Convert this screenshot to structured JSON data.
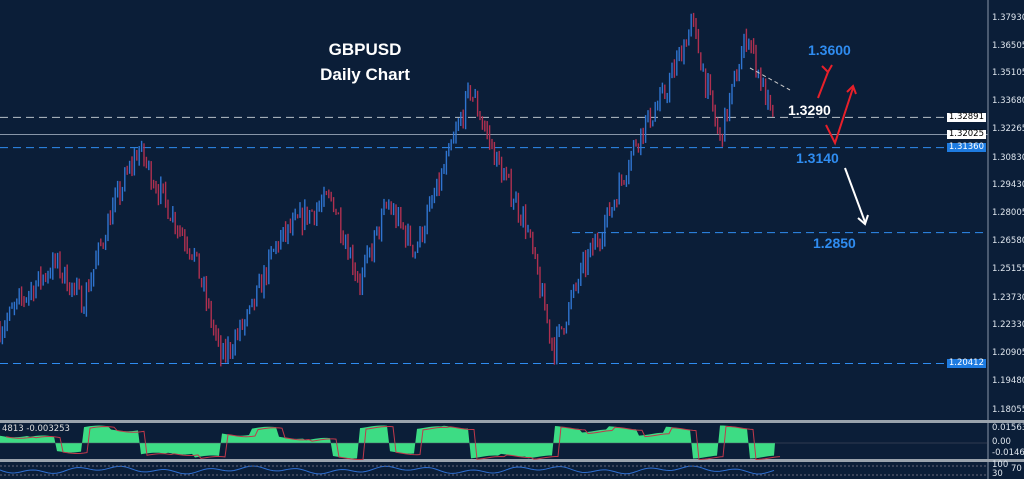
{
  "chart_data": {
    "type": "candlestick",
    "title": "GBPUSD",
    "subtitle": "Daily Chart",
    "ylim": [
      1.18055,
      1.3793
    ],
    "y_ticks": [
      "1.37930",
      "1.36505",
      "1.35105",
      "1.33680",
      "1.32265",
      "1.30830",
      "1.29430",
      "1.28005",
      "1.26580",
      "1.25155",
      "1.23730",
      "1.22330",
      "1.20905",
      "1.19480",
      "1.18055"
    ],
    "y_tick_values": [
      1.3793,
      1.36505,
      1.35105,
      1.3368,
      1.32265,
      1.3083,
      1.2943,
      1.28005,
      1.2658,
      1.25155,
      1.2373,
      1.2233,
      1.20905,
      1.1948,
      1.18055
    ],
    "approx_close_path": [
      1.222,
      1.24,
      1.255,
      1.235,
      1.28,
      1.313,
      1.285,
      1.26,
      1.206,
      1.228,
      1.265,
      1.279,
      1.288,
      1.245,
      1.285,
      1.262,
      1.3,
      1.343,
      1.305,
      1.275,
      1.211,
      1.25,
      1.28,
      1.318,
      1.34,
      1.377,
      1.317,
      1.372,
      1.3225
    ],
    "price_tags": [
      {
        "value": "1.32891",
        "bg": "#ffffff",
        "fg": "#000000"
      },
      {
        "value": "1.32025",
        "bg": "#ffffff",
        "fg": "#000000"
      },
      {
        "value": "1.31360",
        "bg": "#1e7be0",
        "fg": "#ffffff"
      },
      {
        "value": "1.20412",
        "bg": "#1e7be0",
        "fg": "#ffffff"
      }
    ],
    "levels": [
      {
        "label": "1.3600",
        "value": 1.36,
        "color": "#2f8cf0"
      },
      {
        "label": "1.3290",
        "value": 1.329,
        "color": "#ffffff"
      },
      {
        "label": "1.3140",
        "value": 1.314,
        "color": "#2f8cf0"
      },
      {
        "label": "1.2850",
        "value": 1.285,
        "color": "#2f8cf0"
      }
    ],
    "indicator": {
      "label": "4813 -0.003253",
      "ticks": [
        "0.015634",
        "0.00",
        "-0.014617"
      ],
      "fill": "#3ddc84",
      "signal": "#c0394b"
    },
    "sub_indicator": {
      "ticks": [
        "100",
        "70",
        "30"
      ],
      "color": "#2f6fd0"
    },
    "colors": {
      "background": "#0b1e38",
      "bull": "#2f74d0",
      "bear": "#b03050"
    }
  }
}
